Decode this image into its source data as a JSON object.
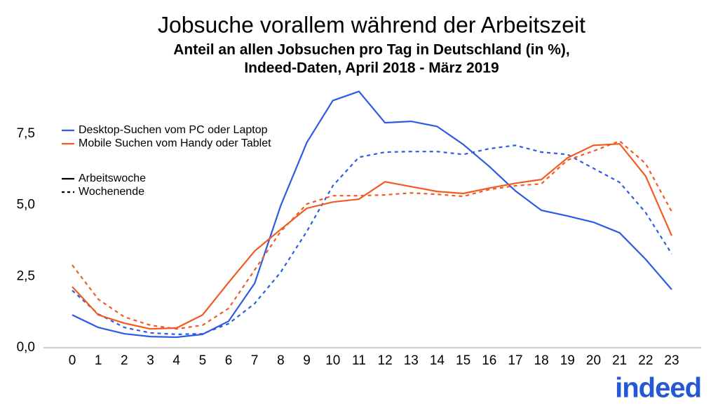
{
  "chart_data": {
    "type": "line",
    "title": "Jobsuche vorallem während der Arbeitszeit",
    "subtitle": [
      "Anteil an allen Jobsuchen pro Tag in Deutschland (in %),",
      "Indeed-Daten, April 2018 - März 2019"
    ],
    "categories": [
      "0",
      "1",
      "2",
      "3",
      "4",
      "5",
      "6",
      "7",
      "8",
      "9",
      "10",
      "11",
      "12",
      "13",
      "14",
      "15",
      "16",
      "17",
      "18",
      "19",
      "20",
      "21",
      "22",
      "23"
    ],
    "ylim": [
      0,
      9
    ],
    "yticks": [
      {
        "value": 0,
        "label": "0,0"
      },
      {
        "value": 2.5,
        "label": "2,5"
      },
      {
        "value": 5,
        "label": "5,0"
      },
      {
        "value": 7.5,
        "label": "7,5"
      }
    ],
    "line_styles": [
      {
        "name": "Arbeitswoche",
        "dash": "none"
      },
      {
        "name": "Wochenende",
        "dash": "5 5"
      }
    ],
    "series": [
      {
        "name": "Desktop-Suchen vom PC oder Laptop",
        "color": "#2d5be3",
        "lines": [
          {
            "values": [
              1.15,
              0.71,
              0.49,
              0.39,
              0.37,
              0.47,
              0.93,
              2.26,
              4.99,
              7.2,
              8.67,
              8.99,
              7.89,
              7.94,
              7.76,
              7.13,
              6.36,
              5.5,
              4.82,
              4.62,
              4.4,
              4.03,
              3.1,
              2.04
            ]
          },
          {
            "values": [
              2.01,
              1.18,
              0.71,
              0.52,
              0.47,
              0.49,
              0.84,
              1.55,
              2.65,
              4.08,
              5.68,
              6.68,
              6.86,
              6.88,
              6.88,
              6.78,
              6.98,
              7.1,
              6.86,
              6.78,
              6.29,
              5.8,
              4.74,
              3.29
            ]
          }
        ]
      },
      {
        "name": "Mobile Suchen vom Handy oder Tablet",
        "color": "#f25a22",
        "lines": [
          {
            "values": [
              2.14,
              1.15,
              0.86,
              0.66,
              0.69,
              1.15,
              2.29,
              3.39,
              4.15,
              4.89,
              5.11,
              5.21,
              5.82,
              5.65,
              5.48,
              5.41,
              5.6,
              5.77,
              5.9,
              6.66,
              7.1,
              7.15,
              6.02,
              3.93
            ]
          },
          {
            "values": [
              2.9,
              1.7,
              1.08,
              0.79,
              0.66,
              0.79,
              1.38,
              2.73,
              4.08,
              5.04,
              5.33,
              5.33,
              5.36,
              5.43,
              5.38,
              5.31,
              5.55,
              5.68,
              5.75,
              6.58,
              6.9,
              7.25,
              6.46,
              4.77
            ]
          }
        ]
      }
    ],
    "logo": "indeed"
  }
}
